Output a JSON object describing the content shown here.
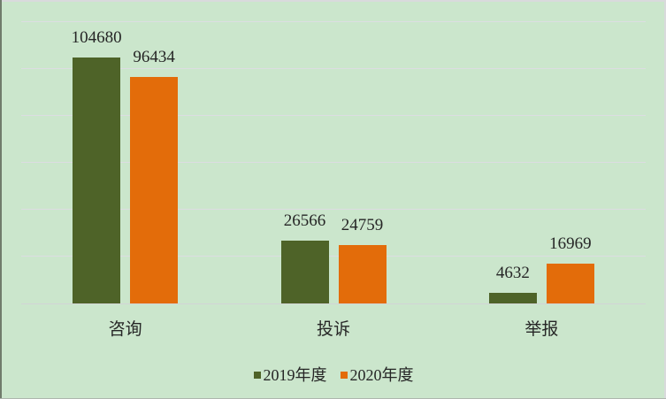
{
  "chart_data": {
    "type": "bar",
    "categories": [
      "咨询",
      "投诉",
      "举报"
    ],
    "series": [
      {
        "name": "2019年度",
        "color": "#4e6328",
        "values": [
          104680,
          26566,
          4632
        ]
      },
      {
        "name": "2020年度",
        "color": "#e36c0a",
        "values": [
          96434,
          24759,
          16969
        ]
      }
    ],
    "title": "",
    "xlabel": "",
    "ylabel": "",
    "ylim": [
      0,
      120000
    ],
    "grid_step": 20000,
    "grid": "on",
    "y_axis_tick_labels_visible": false,
    "data_labels_visible": true,
    "legend_position": "bottom",
    "background_color": "#cbe6cc",
    "gridline_color": "#dcdde2",
    "axis_line_color": "#d2d4d6",
    "text_color": "#262626"
  }
}
